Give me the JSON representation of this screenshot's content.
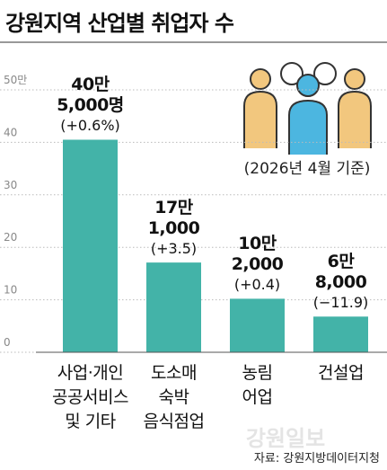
{
  "chart_data": {
    "type": "bar",
    "title": "강원지역 산업별 취업자 수",
    "note": "(2026년 4월 기준)",
    "source": "자료: 강원지방데이터지청",
    "watermark": "강원일보",
    "categories": [
      "사업·개인\n공공서비스\n및 기타",
      "도소매\n숙박\n음식점업",
      "농림\n어업",
      "건설업"
    ],
    "values": [
      40.5,
      17.1,
      10.2,
      6.8
    ],
    "value_labels": [
      "40만\n5,000명",
      "17만\n1,000",
      "10만\n2,000",
      "6만\n8,000"
    ],
    "change_labels": [
      "(+0.6%)",
      "(+3.5)",
      "(+0.4)",
      "(−11.9)"
    ],
    "color": "#43b3a8",
    "ylim": [
      0,
      50
    ],
    "yticks": [
      0,
      10,
      20,
      30,
      40,
      {
        "value": 50,
        "label": "50만"
      }
    ],
    "grid": true
  }
}
